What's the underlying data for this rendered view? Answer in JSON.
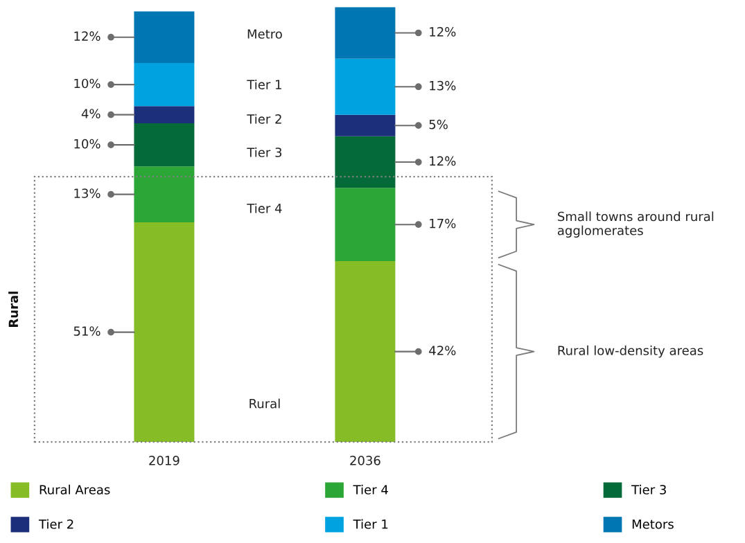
{
  "chart_data": {
    "type": "bar",
    "stacked": true,
    "categories": [
      "2019",
      "2036"
    ],
    "series": [
      {
        "name": "Rural Areas",
        "color": "#86bc25",
        "values": [
          51,
          42
        ],
        "value_labels": [
          "51%",
          "42%"
        ]
      },
      {
        "name": "Tier 4",
        "color": "#2ca636",
        "values": [
          13,
          17
        ],
        "value_labels": [
          "13%",
          "17%"
        ]
      },
      {
        "name": "Tier 3",
        "color": "#046a38",
        "values": [
          10,
          12
        ],
        "value_labels": [
          "10%",
          "12%"
        ]
      },
      {
        "name": "Tier 2",
        "color": "#1c2f7a",
        "values": [
          4,
          5
        ],
        "value_labels": [
          "4%",
          "5%"
        ]
      },
      {
        "name": "Tier 1",
        "color": "#00a3e0",
        "values": [
          10,
          13
        ],
        "value_labels": [
          "10%",
          "13%"
        ]
      },
      {
        "name": "Metors",
        "color": "#0076b2",
        "values": [
          12,
          12
        ],
        "value_labels": [
          "12%",
          "12%"
        ]
      }
    ],
    "annotations": [
      "Rural",
      "Tier 4",
      "Tier 3",
      "Tier 2",
      "Tier 1",
      "Metro",
      "Small towns around rural agglomerates",
      "Rural low-density areas",
      "Rural"
    ],
    "legend": "bottom"
  }
}
